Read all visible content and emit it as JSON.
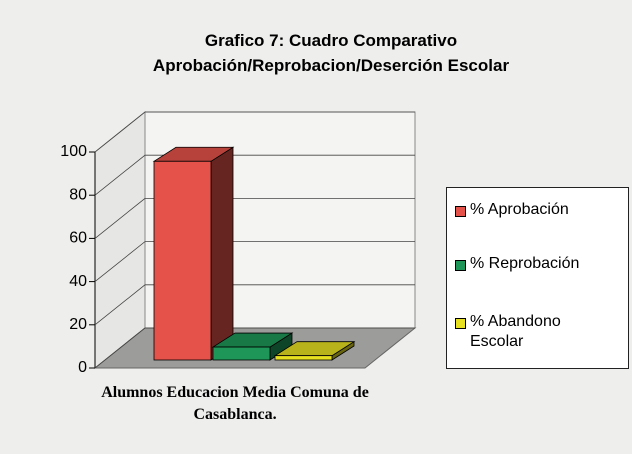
{
  "chart_data": {
    "type": "bar3d",
    "title": "Grafico 7: Cuadro Comparativo Aprobación/Reprobacion/Deserción Escolar",
    "categories": [
      "Alumnos Educacion Media Comuna de Casablanca."
    ],
    "series": [
      {
        "name": "% Aprobación",
        "color": "#e4524a",
        "values": [
          92
        ]
      },
      {
        "name": "% Reprobación",
        "color": "#1e9658",
        "values": [
          6
        ]
      },
      {
        "name": "% Abandono Escolar",
        "color": "#e6e020",
        "values": [
          2
        ]
      }
    ],
    "ylim": [
      0,
      100
    ],
    "yticks": [
      0,
      20,
      40,
      60,
      80,
      100
    ],
    "grid": true,
    "legend": "right"
  }
}
